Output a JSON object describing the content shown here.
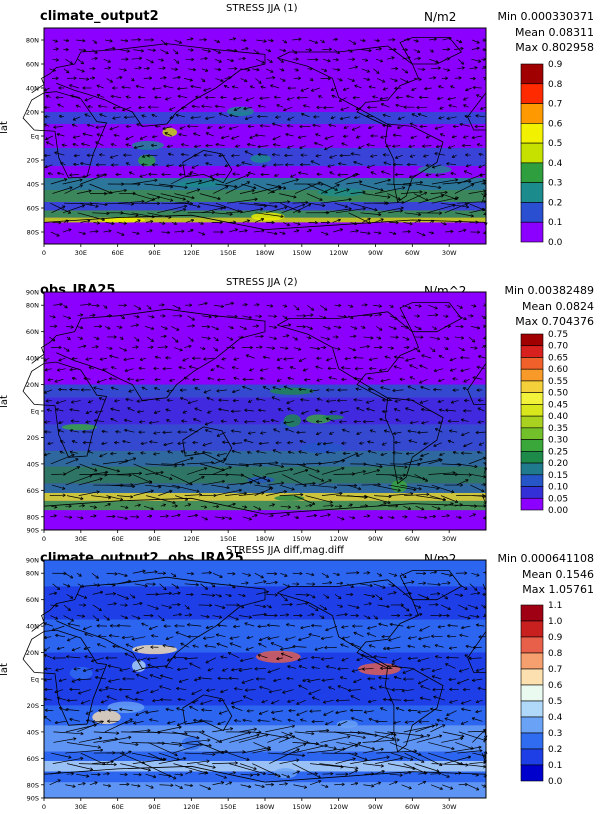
{
  "colors": {
    "magma_scale": [
      "#8c00ff",
      "#2a4fd0",
      "#1b8b8b",
      "#2e9e3e",
      "#c6e000",
      "#f2f200",
      "#ff9900",
      "#ff2a00",
      "#a00000"
    ],
    "jra_scale": [
      "#8c00ff",
      "#3330d8",
      "#2655c8",
      "#1f7a8e",
      "#1e8a4a",
      "#3aa73a",
      "#72c02a",
      "#a8d21f",
      "#d8e61b",
      "#f2f23a",
      "#f4d03a",
      "#f79a2a",
      "#f0602a",
      "#d8201e",
      "#a00000"
    ],
    "diff_scale": [
      "#0000cd",
      "#1f3fe6",
      "#2f6cf0",
      "#6aa3f5",
      "#b0d8f8",
      "#eafaf0",
      "#fde0b0",
      "#f6a070",
      "#e8604a",
      "#c8201e",
      "#a00014"
    ]
  },
  "panels": [
    {
      "case_name": "climate_output2",
      "title": "STRESS JJA (1)",
      "units": "N/m2",
      "stats": [
        "Min 0.000330371",
        "Mean 0.08311",
        "Max 0.802958"
      ],
      "ylabel": "lat",
      "lat_ticks": [
        "80N",
        "60N",
        "40N",
        "20N",
        "Eq",
        "20S",
        "40S",
        "60S",
        "80S"
      ],
      "lon_ticks": [
        "0",
        "30E",
        "60E",
        "90E",
        "120E",
        "150E",
        "180W",
        "150W",
        "120W",
        "90W",
        "60W",
        "30W"
      ],
      "colorbar_labels": [
        "0.9",
        "0.8",
        "0.7",
        "0.6",
        "0.5",
        "0.4",
        "0.3",
        "0.2",
        "0.1",
        "0.0"
      ]
    },
    {
      "case_name": "obs_JRA25",
      "title": "STRESS JJA (2)",
      "units": "N/m^2",
      "stats": [
        "Min 0.00382489",
        "Mean 0.0824",
        "Max 0.704376"
      ],
      "ylabel": "lat",
      "lat_ticks": [
        "90N",
        "80N",
        "60N",
        "40N",
        "20N",
        "Eq",
        "20S",
        "40S",
        "60S",
        "80S",
        "90S"
      ],
      "lon_ticks": [
        "0",
        "30E",
        "60E",
        "90E",
        "120E",
        "150E",
        "180W",
        "150W",
        "120W",
        "90W",
        "60W",
        "30W"
      ],
      "colorbar_labels": [
        "0.75",
        "0.70",
        "0.65",
        "0.60",
        "0.55",
        "0.50",
        "0.45",
        "0.40",
        "0.35",
        "0.30",
        "0.25",
        "0.20",
        "0.15",
        "0.10",
        "0.05",
        "0.00"
      ]
    },
    {
      "case_name": "climate_output2, obs_JRA25",
      "title": "STRESS JJA diff,mag.diff",
      "units": "N/m2",
      "stats": [
        "Min 0.000641108",
        "Mean 0.1546",
        "Max 1.05761"
      ],
      "ylabel": "lat",
      "lat_ticks": [
        "90N",
        "80N",
        "60N",
        "40N",
        "20N",
        "Eq",
        "20S",
        "40S",
        "60S",
        "80S",
        "90S"
      ],
      "lon_ticks": [
        "0",
        "30E",
        "60E",
        "90E",
        "120E",
        "150E",
        "180W",
        "150W",
        "120W",
        "90W",
        "60W",
        "30W"
      ],
      "colorbar_labels": [
        "1.1",
        "1.0",
        "0.9",
        "0.8",
        "0.7",
        "0.6",
        "0.5",
        "0.4",
        "0.3",
        "0.2",
        "0.1",
        "0.0"
      ]
    }
  ],
  "chart_data": [
    {
      "type": "heatmap",
      "title": "STRESS JJA (1)",
      "ylabel": "lat",
      "x_ticks": [
        "0",
        "30E",
        "60E",
        "90E",
        "120E",
        "150E",
        "180W",
        "150W",
        "120W",
        "90W",
        "60W",
        "30W"
      ],
      "y_ticks": [
        "80N",
        "60N",
        "40N",
        "20N",
        "Eq",
        "20S",
        "40S",
        "60S",
        "80S"
      ],
      "xlim": [
        0,
        360
      ],
      "ylim": [
        -90,
        90
      ],
      "colorbar_levels": [
        0.0,
        0.1,
        0.2,
        0.3,
        0.4,
        0.5,
        0.6,
        0.7,
        0.8,
        0.9
      ],
      "min": 0.000330371,
      "mean": 0.08311,
      "max": 0.802958,
      "units": "N/m2"
    },
    {
      "type": "heatmap",
      "title": "STRESS JJA (2)",
      "ylabel": "lat",
      "x_ticks": [
        "0",
        "30E",
        "60E",
        "90E",
        "120E",
        "150E",
        "180W",
        "150W",
        "120W",
        "90W",
        "60W",
        "30W"
      ],
      "y_ticks": [
        "90N",
        "80N",
        "60N",
        "40N",
        "20N",
        "Eq",
        "20S",
        "40S",
        "60S",
        "80S",
        "90S"
      ],
      "xlim": [
        0,
        360
      ],
      "ylim": [
        -90,
        90
      ],
      "colorbar_levels": [
        0.0,
        0.05,
        0.1,
        0.15,
        0.2,
        0.25,
        0.3,
        0.35,
        0.4,
        0.45,
        0.5,
        0.55,
        0.6,
        0.65,
        0.7,
        0.75
      ],
      "min": 0.00382489,
      "mean": 0.0824,
      "max": 0.704376,
      "units": "N/m^2"
    },
    {
      "type": "heatmap",
      "title": "STRESS JJA diff,mag.diff",
      "ylabel": "lat",
      "x_ticks": [
        "0",
        "30E",
        "60E",
        "90E",
        "120E",
        "150E",
        "180W",
        "150W",
        "120W",
        "90W",
        "60W",
        "30W"
      ],
      "y_ticks": [
        "90N",
        "80N",
        "60N",
        "40N",
        "20N",
        "Eq",
        "20S",
        "40S",
        "60S",
        "80S",
        "90S"
      ],
      "xlim": [
        0,
        360
      ],
      "ylim": [
        -90,
        90
      ],
      "colorbar_levels": [
        0.0,
        0.1,
        0.2,
        0.3,
        0.4,
        0.5,
        0.6,
        0.7,
        0.8,
        0.9,
        1.0,
        1.1
      ],
      "min": 0.000641108,
      "mean": 0.1546,
      "max": 1.05761,
      "units": "N/m2"
    }
  ]
}
